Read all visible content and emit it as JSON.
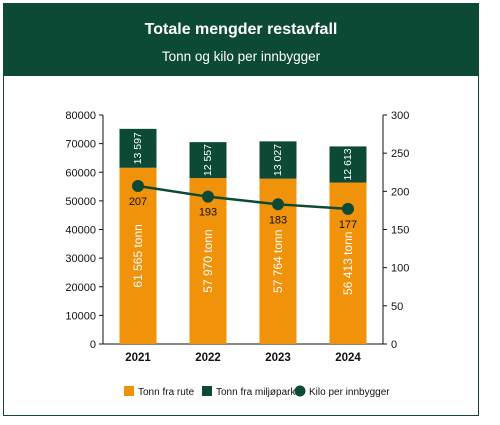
{
  "colors": {
    "brand": "#0c4a35",
    "rute": "#f0920a",
    "miljopark": "#0c4a35",
    "line": "#0c4a35"
  },
  "header": {
    "title": "Totale mengder restavfall",
    "subtitle": "Tonn og kilo per innbygger"
  },
  "chart_data": {
    "type": "bar",
    "stacked": true,
    "categories": [
      "2021",
      "2022",
      "2023",
      "2024"
    ],
    "series": [
      {
        "name": "Tonn fra rute",
        "values": [
          61565,
          57970,
          57764,
          56413
        ],
        "labels": [
          "61 565 tonn",
          "57 970 tonn",
          "57 764 tonn",
          "56 413 tonn"
        ]
      },
      {
        "name": "Tonn fra miljøpark",
        "values": [
          13597,
          12557,
          13027,
          12613
        ],
        "labels": [
          "13 597",
          "12 557",
          "13 027",
          "12 613"
        ]
      }
    ],
    "line": {
      "name": "Kilo per innbygger",
      "values": [
        207,
        193,
        183,
        177
      ],
      "labels": [
        "207",
        "193",
        "183",
        "177"
      ],
      "axis": "right"
    },
    "ylim": [
      0,
      80000
    ],
    "yticks": [
      "0",
      "10000",
      "20000",
      "30000",
      "40000",
      "50000",
      "60000",
      "70000",
      "80000"
    ],
    "y2lim": [
      0,
      300
    ],
    "y2ticks": [
      "0",
      "50",
      "100",
      "150",
      "200",
      "250",
      "300"
    ],
    "legend_position": "bottom",
    "grid": false
  }
}
